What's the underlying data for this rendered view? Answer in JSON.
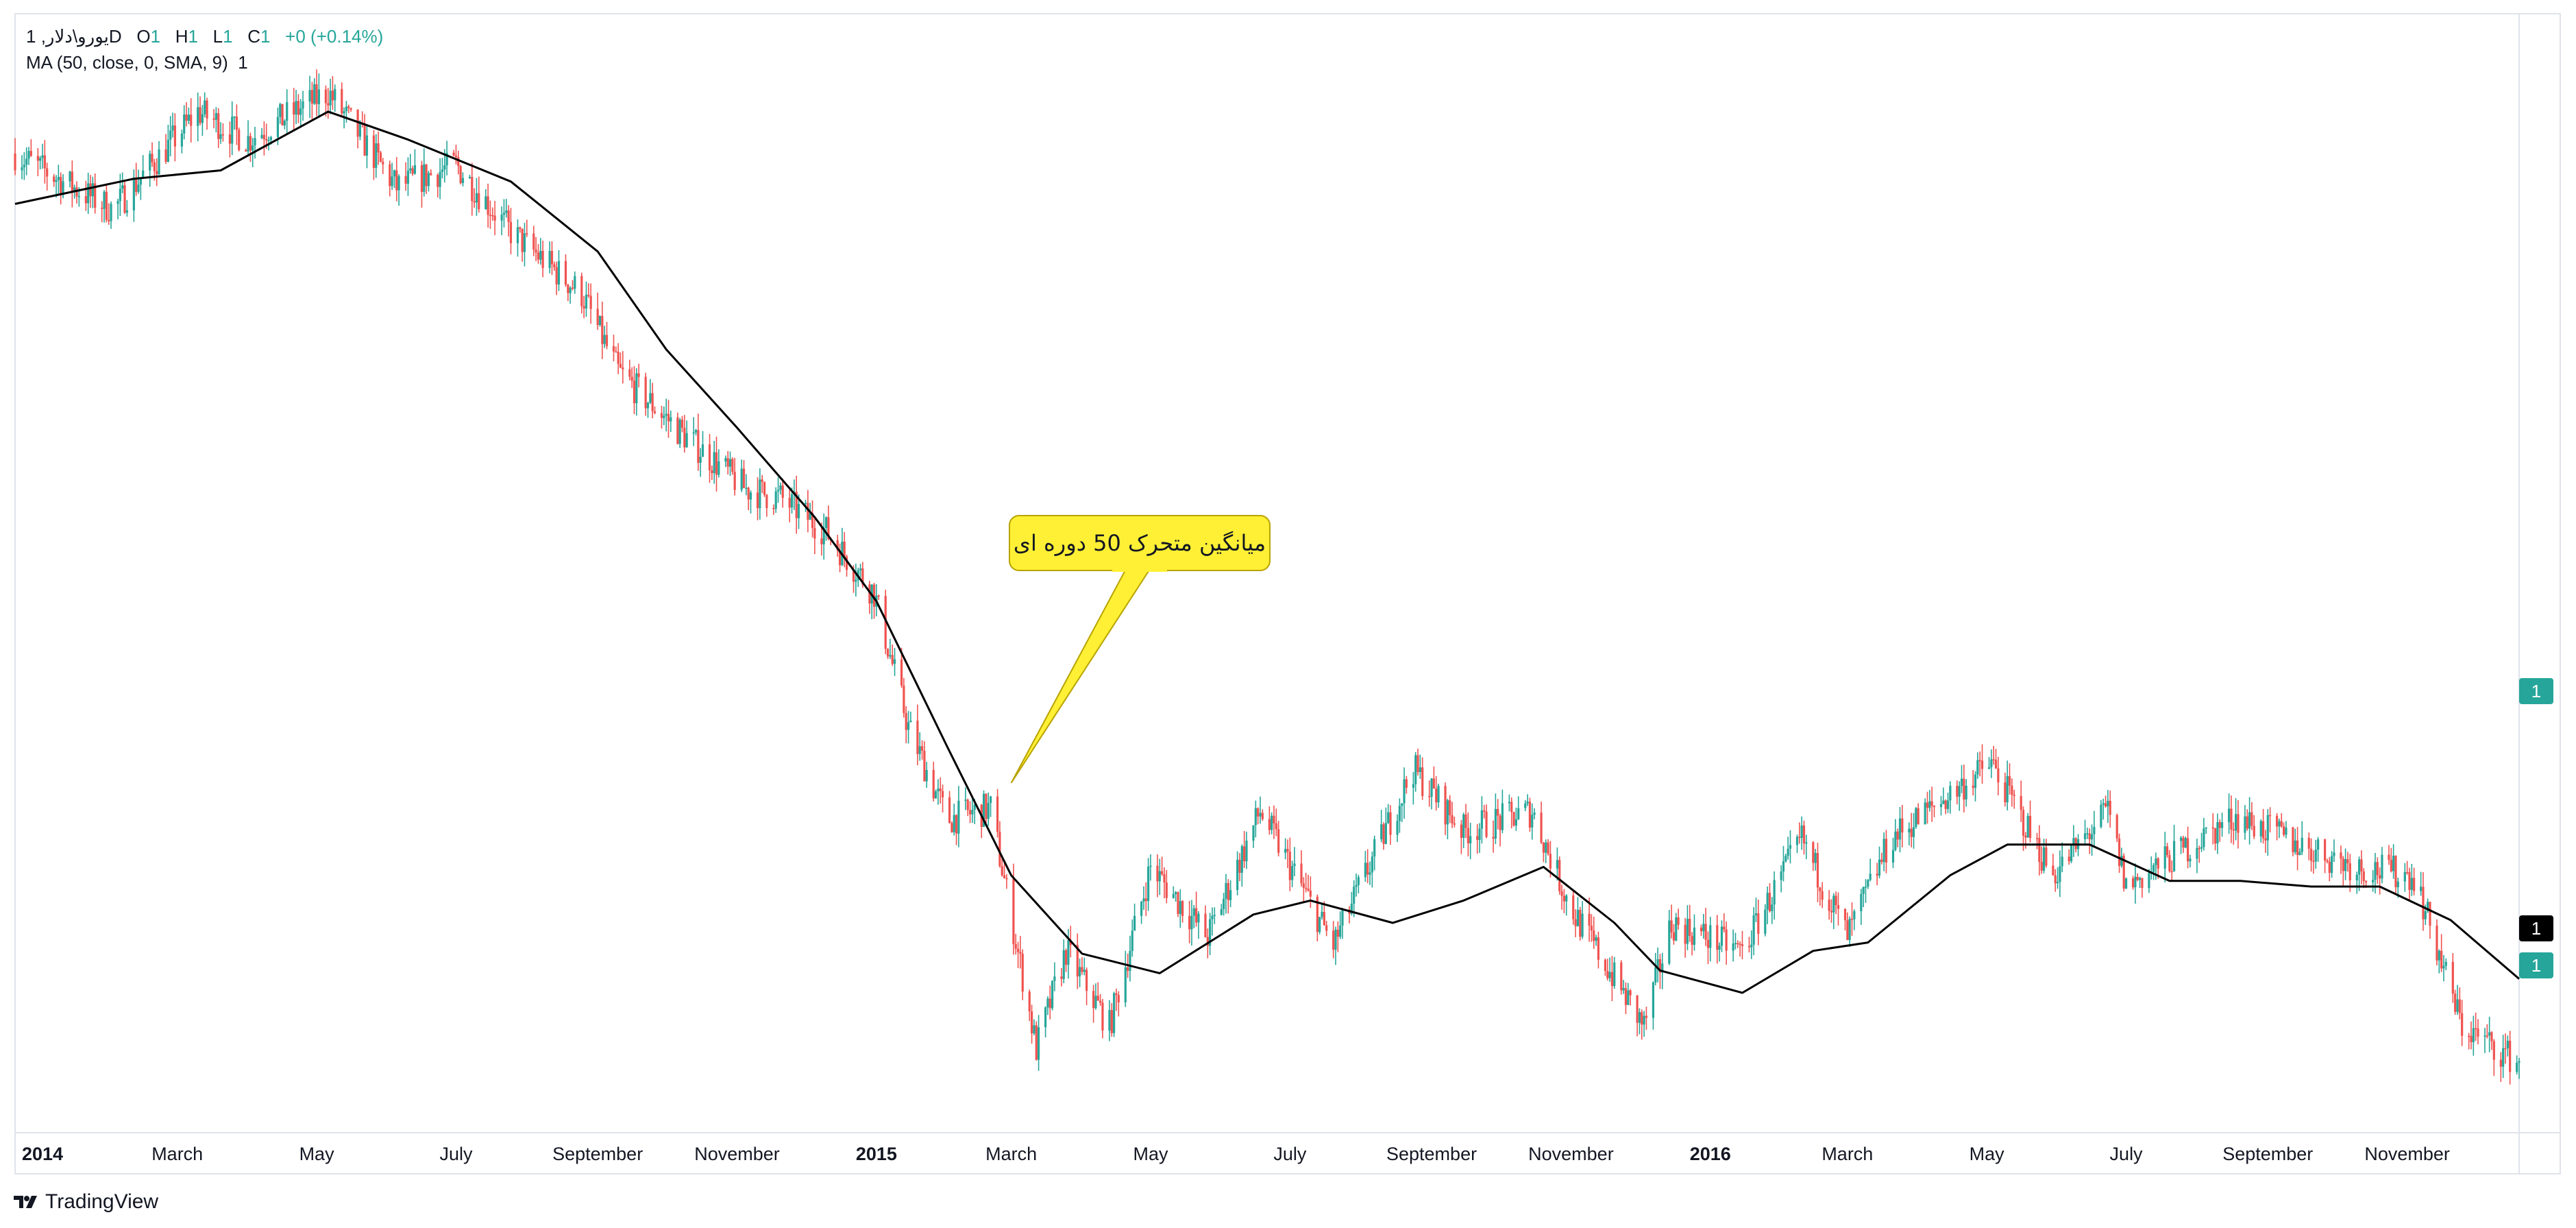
{
  "legend": {
    "symbol": "یورو\\دلار, 1D",
    "o_label": "O",
    "o_val": "1",
    "h_label": "H",
    "h_val": "1",
    "l_label": "L",
    "l_val": "1",
    "c_label": "C",
    "c_val": "1",
    "change": "+0 (+0.14%)",
    "indicator": "MA (50, close, 0, SMA, 9)",
    "indicator_val": "1"
  },
  "brand": {
    "name": "TradingView",
    "logo_icon": "tradingview-logo-icon"
  },
  "colors": {
    "up": "#26a69a",
    "down": "#ef5350",
    "ma": "#000000",
    "callout_fill": "#fff035",
    "callout_stroke": "#b8a300"
  },
  "price_labels": {
    "ma_label": "1",
    "top_label": "1",
    "last_label": "1"
  },
  "annotation": {
    "text": "میانگین متحرک 50 دوره ای"
  },
  "chart_data": {
    "type": "candlestick",
    "symbol": "یورو\\دلار",
    "timeframe": "1D",
    "x_axis": {
      "range": [
        "2013-12-20",
        "2016-12-20"
      ],
      "ticks": [
        {
          "label": "2014",
          "date": "2014-01-01",
          "bold": true
        },
        {
          "label": "March",
          "date": "2014-03-01"
        },
        {
          "label": "May",
          "date": "2014-05-01"
        },
        {
          "label": "July",
          "date": "2014-07-01"
        },
        {
          "label": "September",
          "date": "2014-09-01"
        },
        {
          "label": "November",
          "date": "2014-11-01"
        },
        {
          "label": "2015",
          "date": "2015-01-01",
          "bold": true
        },
        {
          "label": "March",
          "date": "2015-03-01"
        },
        {
          "label": "May",
          "date": "2015-05-01"
        },
        {
          "label": "July",
          "date": "2015-07-01"
        },
        {
          "label": "September",
          "date": "2015-09-01"
        },
        {
          "label": "November",
          "date": "2015-11-01"
        },
        {
          "label": "2016",
          "date": "2016-01-01",
          "bold": true
        },
        {
          "label": "March",
          "date": "2016-03-01"
        },
        {
          "label": "May",
          "date": "2016-05-01"
        },
        {
          "label": "July",
          "date": "2016-07-01"
        },
        {
          "label": "September",
          "date": "2016-09-01"
        },
        {
          "label": "November",
          "date": "2016-11-01"
        }
      ]
    },
    "y_range": [
      1.02,
      1.42
    ],
    "close_path": [
      [
        "2013-12-20",
        1.37
      ],
      [
        "2014-01-10",
        1.36
      ],
      [
        "2014-02-01",
        1.35
      ],
      [
        "2014-03-10",
        1.385
      ],
      [
        "2014-04-01",
        1.375
      ],
      [
        "2014-05-06",
        1.392
      ],
      [
        "2014-06-05",
        1.358
      ],
      [
        "2014-07-01",
        1.366
      ],
      [
        "2014-07-25",
        1.342
      ],
      [
        "2014-08-25",
        1.32
      ],
      [
        "2014-09-10",
        1.292
      ],
      [
        "2014-10-08",
        1.27
      ],
      [
        "2014-11-05",
        1.25
      ],
      [
        "2014-11-20",
        1.247
      ],
      [
        "2014-12-10",
        1.235
      ],
      [
        "2014-12-31",
        1.213
      ],
      [
        "2015-01-15",
        1.165
      ],
      [
        "2015-02-01",
        1.132
      ],
      [
        "2015-02-20",
        1.136
      ],
      [
        "2015-03-12",
        1.05
      ],
      [
        "2015-03-25",
        1.085
      ],
      [
        "2015-04-13",
        1.058
      ],
      [
        "2015-05-01",
        1.115
      ],
      [
        "2015-05-26",
        1.09
      ],
      [
        "2015-06-18",
        1.135
      ],
      [
        "2015-07-20",
        1.087
      ],
      [
        "2015-08-24",
        1.15
      ],
      [
        "2015-09-15",
        1.128
      ],
      [
        "2015-10-15",
        1.135
      ],
      [
        "2015-11-01",
        1.1
      ],
      [
        "2015-12-03",
        1.058
      ],
      [
        "2015-12-15",
        1.095
      ],
      [
        "2016-01-15",
        1.085
      ],
      [
        "2016-02-10",
        1.125
      ],
      [
        "2016-03-01",
        1.09
      ],
      [
        "2016-03-20",
        1.125
      ],
      [
        "2016-05-03",
        1.152
      ],
      [
        "2016-05-30",
        1.112
      ],
      [
        "2016-06-23",
        1.135
      ],
      [
        "2016-07-01",
        1.108
      ],
      [
        "2016-08-18",
        1.133
      ],
      [
        "2016-09-15",
        1.123
      ],
      [
        "2016-10-10",
        1.115
      ],
      [
        "2016-11-04",
        1.112
      ],
      [
        "2016-11-25",
        1.058
      ],
      [
        "2016-12-20",
        1.045
      ]
    ],
    "ma_path": [
      [
        "2013-12-20",
        1.352
      ],
      [
        "2014-02-10",
        1.361
      ],
      [
        "2014-03-20",
        1.364
      ],
      [
        "2014-05-06",
        1.385
      ],
      [
        "2014-06-10",
        1.375
      ],
      [
        "2014-07-25",
        1.36
      ],
      [
        "2014-09-01",
        1.335
      ],
      [
        "2014-10-01",
        1.3
      ],
      [
        "2014-11-01",
        1.272
      ],
      [
        "2014-12-05",
        1.24
      ],
      [
        "2015-01-01",
        1.21
      ],
      [
        "2015-02-01",
        1.158
      ],
      [
        "2015-03-01",
        1.112
      ],
      [
        "2015-04-01",
        1.084
      ],
      [
        "2015-05-05",
        1.077
      ],
      [
        "2015-06-15",
        1.098
      ],
      [
        "2015-07-10",
        1.103
      ],
      [
        "2015-08-15",
        1.095
      ],
      [
        "2015-09-15",
        1.103
      ],
      [
        "2015-10-20",
        1.115
      ],
      [
        "2015-11-20",
        1.095
      ],
      [
        "2015-12-10",
        1.078
      ],
      [
        "2016-01-15",
        1.07
      ],
      [
        "2016-02-15",
        1.085
      ],
      [
        "2016-03-10",
        1.088
      ],
      [
        "2016-04-15",
        1.112
      ],
      [
        "2016-05-10",
        1.123
      ],
      [
        "2016-06-15",
        1.123
      ],
      [
        "2016-07-20",
        1.11
      ],
      [
        "2016-08-20",
        1.11
      ],
      [
        "2016-09-20",
        1.108
      ],
      [
        "2016-10-20",
        1.108
      ],
      [
        "2016-11-20",
        1.096
      ],
      [
        "2016-12-20",
        1.075
      ]
    ],
    "series": [
      {
        "name": "MA (50, close, 0, SMA, 9)",
        "type": "line"
      }
    ],
    "callout_anchor": [
      "2015-03-01",
      1.145
    ]
  }
}
